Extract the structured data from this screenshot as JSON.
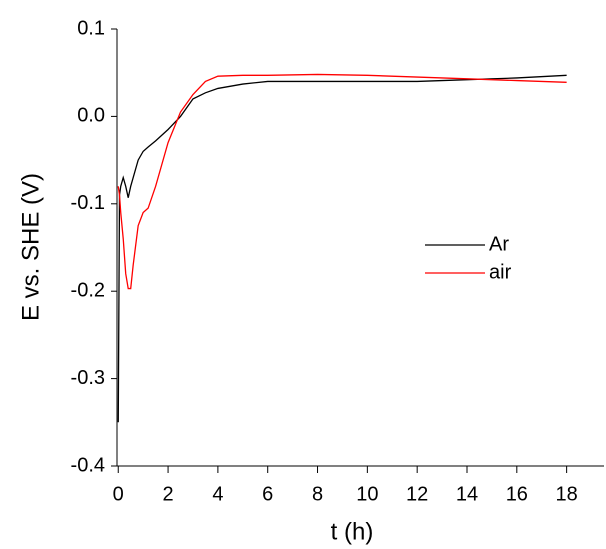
{
  "chart_data": {
    "type": "line",
    "x_label": "t (h)",
    "y_label": "E vs. SHE (V)",
    "x": [
      0,
      0.05,
      0.1,
      0.2,
      0.3,
      0.4,
      0.5,
      0.6,
      0.8,
      1.0,
      1.2,
      1.5,
      2,
      2.5,
      3,
      3.5,
      4,
      5,
      6,
      8,
      10,
      12,
      14,
      16,
      18
    ],
    "series": [
      {
        "name": "Ar",
        "color": "#000000",
        "values": [
          -0.35,
          -0.09,
          -0.08,
          -0.07,
          -0.08,
          -0.093,
          -0.08,
          -0.07,
          -0.05,
          -0.04,
          -0.035,
          -0.028,
          -0.015,
          0.0,
          0.02,
          0.027,
          0.032,
          0.037,
          0.04,
          0.04,
          0.04,
          0.04,
          0.042,
          0.044,
          0.047
        ]
      },
      {
        "name": "air",
        "color": "#ff0000",
        "values": [
          -0.08,
          -0.09,
          -0.11,
          -0.14,
          -0.18,
          -0.197,
          -0.197,
          -0.17,
          -0.125,
          -0.11,
          -0.105,
          -0.08,
          -0.03,
          0.005,
          0.025,
          0.04,
          0.046,
          0.047,
          0.047,
          0.048,
          0.047,
          0.045,
          0.043,
          0.041,
          0.039
        ]
      }
    ],
    "xlim": [
      -0.05,
      19.5
    ],
    "xticks": [
      0,
      2,
      4,
      6,
      8,
      10,
      12,
      14,
      16,
      18
    ],
    "ylim": [
      -0.4,
      0.1
    ],
    "yticks": [
      -0.4,
      -0.3,
      -0.2,
      -0.1,
      {
        "value": 0,
        "label": "0.0"
      },
      0.1
    ],
    "grid": false,
    "legend": "right"
  }
}
